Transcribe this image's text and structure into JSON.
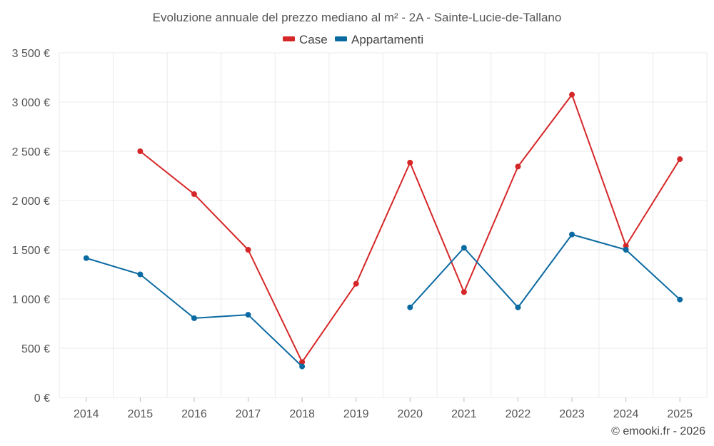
{
  "chart_data": {
    "type": "line",
    "title": "Evoluzione annuale del prezzo mediano al m² - 2A - Sainte-Lucie-de-Tallano",
    "categories": [
      "2014",
      "2015",
      "2016",
      "2017",
      "2018",
      "2019",
      "2020",
      "2021",
      "2022",
      "2023",
      "2024",
      "2025"
    ],
    "series": [
      {
        "name": "Case",
        "color": "#d62728",
        "values": [
          null,
          2500,
          2065,
          1500,
          360,
          1155,
          2385,
          1070,
          2345,
          3075,
          1540,
          2420
        ]
      },
      {
        "name": "Appartamenti",
        "color": "#0b6aa2",
        "values": [
          1415,
          1250,
          805,
          840,
          315,
          null,
          915,
          1520,
          915,
          1655,
          1500,
          995
        ]
      }
    ],
    "ylim": [
      0,
      3500
    ],
    "yticks": [
      0,
      500,
      1000,
      1500,
      2000,
      2500,
      3000,
      3500
    ],
    "ytick_labels": [
      "0 €",
      "500 €",
      "1 000 €",
      "1 500 €",
      "2 000 €",
      "2 500 €",
      "3 000 €",
      "3 500 €"
    ],
    "grid": true,
    "legend_position": "top-center",
    "xlabel": "",
    "ylabel": ""
  },
  "credit": "© emooki.fr - 2026"
}
